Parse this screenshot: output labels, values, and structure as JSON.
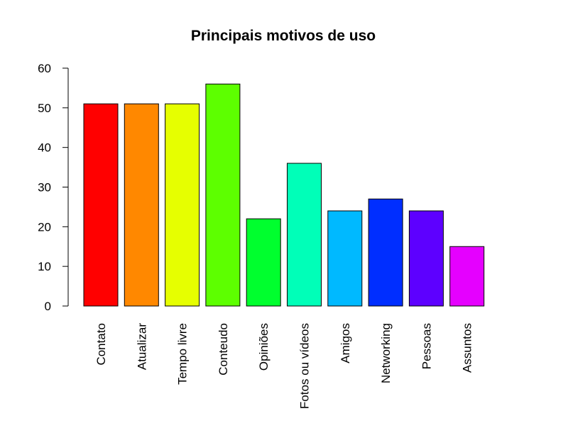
{
  "chart_data": {
    "type": "bar",
    "title": "Principais motivos de uso",
    "xlabel": "",
    "ylabel": "",
    "ylim": [
      0,
      60
    ],
    "yticks": [
      0,
      10,
      20,
      30,
      40,
      50,
      60
    ],
    "grid": false,
    "legend": "none",
    "categories": [
      "Contato",
      "Atualizar",
      "Tempo livre",
      "Conteudo",
      "Opiniões",
      "Fotos ou vídeos",
      "Amigos",
      "Networking",
      "Pessoas",
      "Assuntos"
    ],
    "values": [
      51,
      51,
      51,
      56,
      22,
      36,
      24,
      27,
      24,
      15
    ],
    "colors": [
      "#FF0000",
      "#FF8800",
      "#E6FF00",
      "#5DFF00",
      "#00FF2E",
      "#00FFB8",
      "#00B9FF",
      "#002EFF",
      "#5D00FF",
      "#E500FF"
    ]
  }
}
